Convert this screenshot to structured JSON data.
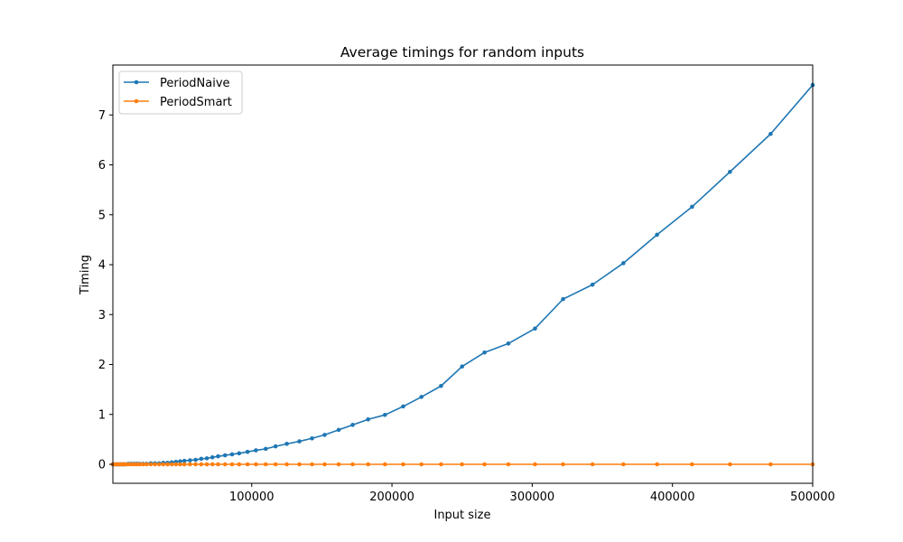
{
  "chart_data": {
    "type": "line",
    "title": "Average timings for random inputs",
    "xlabel": "Input size",
    "ylabel": "Timing",
    "xlim": [
      1000,
      500000
    ],
    "ylim": [
      -0.38,
      8.0
    ],
    "xticks": [
      100000,
      200000,
      300000,
      400000,
      500000
    ],
    "xtick_labels": [
      "100000",
      "200000",
      "300000",
      "400000",
      "500000"
    ],
    "yticks": [
      0,
      1,
      2,
      3,
      4,
      5,
      6,
      7
    ],
    "ytick_labels": [
      "0",
      "1",
      "2",
      "3",
      "4",
      "5",
      "6",
      "7"
    ],
    "grid": false,
    "legend_position": "top-left",
    "x": [
      1000,
      2000,
      3000,
      4000,
      5000,
      6000,
      7000,
      8000,
      9000,
      10000,
      12000,
      14000,
      16000,
      18000,
      20000,
      22500,
      25000,
      28000,
      31000,
      34000,
      37000,
      40000,
      43000,
      46000,
      49000,
      52000,
      56000,
      60000,
      64000,
      68000,
      72000,
      76000,
      81000,
      86000,
      91000,
      97000,
      103000,
      110000,
      117000,
      125000,
      134000,
      143000,
      152000,
      162000,
      172000,
      183000,
      195000,
      208000,
      221000,
      235000,
      250000,
      266000,
      283000,
      302000,
      322000,
      343000,
      365000,
      389000,
      414000,
      441000,
      470000,
      500000
    ],
    "series": [
      {
        "name": "PeriodNaive",
        "color": "#1f77b4",
        "values": [
          0,
          0,
          0,
          0,
          0,
          0,
          0,
          0,
          0,
          0,
          0.01,
          0.01,
          0.01,
          0.01,
          0.01,
          0.01,
          0.01,
          0.02,
          0.02,
          0.02,
          0.03,
          0.03,
          0.04,
          0.05,
          0.06,
          0.07,
          0.08,
          0.09,
          0.11,
          0.12,
          0.14,
          0.16,
          0.18,
          0.2,
          0.22,
          0.25,
          0.28,
          0.31,
          0.36,
          0.41,
          0.46,
          0.52,
          0.59,
          0.69,
          0.79,
          0.9,
          0.99,
          1.16,
          1.35,
          1.57,
          1.96,
          2.24,
          2.42,
          2.72,
          3.31,
          3.6,
          4.03,
          4.6,
          5.16,
          5.86,
          6.62,
          7.6
        ]
      },
      {
        "name": "PeriodSmart",
        "color": "#ff7f0e",
        "values": [
          0,
          0,
          0,
          0,
          0,
          0,
          0,
          0,
          0,
          0,
          0,
          0,
          0,
          0,
          0,
          0,
          0,
          0,
          0,
          0,
          0,
          0,
          0,
          0,
          0,
          0,
          0,
          0,
          0,
          0,
          0,
          0,
          0,
          0,
          0,
          0,
          0,
          0,
          0,
          0,
          0,
          0,
          0,
          0,
          0,
          0,
          0,
          0,
          0,
          0,
          0,
          0,
          0,
          0,
          0,
          0,
          0,
          0,
          0,
          0,
          0,
          0
        ]
      }
    ]
  }
}
